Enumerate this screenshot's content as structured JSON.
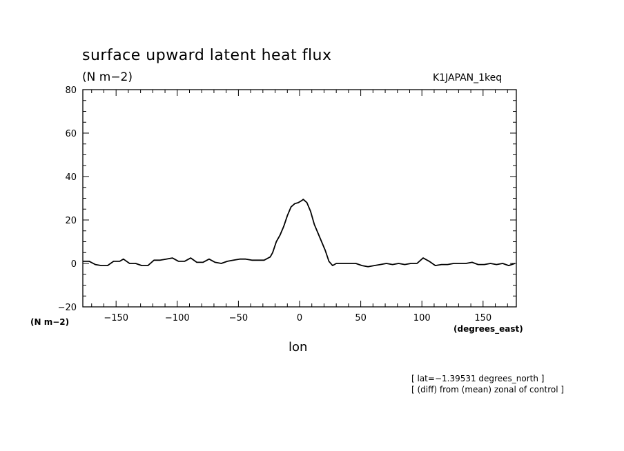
{
  "chart_data": {
    "type": "line",
    "title": "surface upward latent heat flux",
    "units_label": "(N m−2)",
    "run_label": "K1JAPAN_1keq",
    "xlabel": "lon",
    "x_units": "(degrees_east)",
    "y_units_bottom": "(N m−2)",
    "notes": [
      "[ lat=−1.39531 degrees_north ]",
      "[ (diff) from (mean) zonal of control ]"
    ],
    "xlim": [
      -177.1875,
      177.1875
    ],
    "ylim": [
      -20,
      80
    ],
    "xticks": [
      -150,
      -100,
      -50,
      0,
      50,
      100,
      150
    ],
    "xtick_labels": [
      "−150",
      "−100",
      "−50",
      "0",
      "50",
      "100",
      "150"
    ],
    "yticks": [
      -20,
      0,
      20,
      40,
      60,
      80
    ],
    "ytick_labels": [
      "−20",
      "0",
      "20",
      "40",
      "60",
      "80"
    ],
    "grid": false,
    "series": [
      {
        "x": [
          -177,
          -172,
          -167,
          -162,
          -157,
          -152,
          -147,
          -144,
          -139,
          -134,
          -129,
          -124,
          -119,
          -114,
          -109,
          -104,
          -99,
          -94,
          -89,
          -84,
          -79,
          -74,
          -69,
          -64,
          -59,
          -54,
          -49,
          -44,
          -39,
          -34,
          -29,
          -24,
          -22,
          -19,
          -16,
          -13,
          -10,
          -7,
          -4,
          -1,
          2,
          3,
          6,
          9,
          12,
          15,
          18,
          21,
          24,
          27,
          30,
          33,
          36,
          41,
          46,
          51,
          56,
          61,
          66,
          71,
          76,
          81,
          86,
          91,
          96,
          101,
          106,
          111,
          116,
          121,
          126,
          131,
          136,
          141,
          146,
          151,
          156,
          161,
          166,
          171,
          176
        ],
        "y": [
          1,
          1,
          -0.5,
          -1,
          -1,
          1,
          1,
          2,
          0,
          0,
          -1,
          -1,
          1.5,
          1.5,
          2,
          2.5,
          1,
          1,
          2.5,
          0.5,
          0.5,
          2,
          0.5,
          0,
          1,
          1.5,
          2,
          2,
          1.5,
          1.5,
          1.5,
          3,
          5,
          10,
          13,
          17,
          22,
          26,
          27.5,
          28,
          29,
          29.5,
          28,
          24,
          18,
          14,
          10,
          6,
          1,
          -1,
          0,
          0,
          0,
          0,
          0,
          -1,
          -1.5,
          -1,
          -0.5,
          0,
          -0.5,
          0,
          -0.5,
          0,
          0,
          2.5,
          1,
          -1,
          -0.5,
          -0.5,
          0,
          0,
          0,
          0.5,
          -0.5,
          -0.5,
          0,
          -0.5,
          0,
          -1,
          0
        ]
      }
    ]
  }
}
